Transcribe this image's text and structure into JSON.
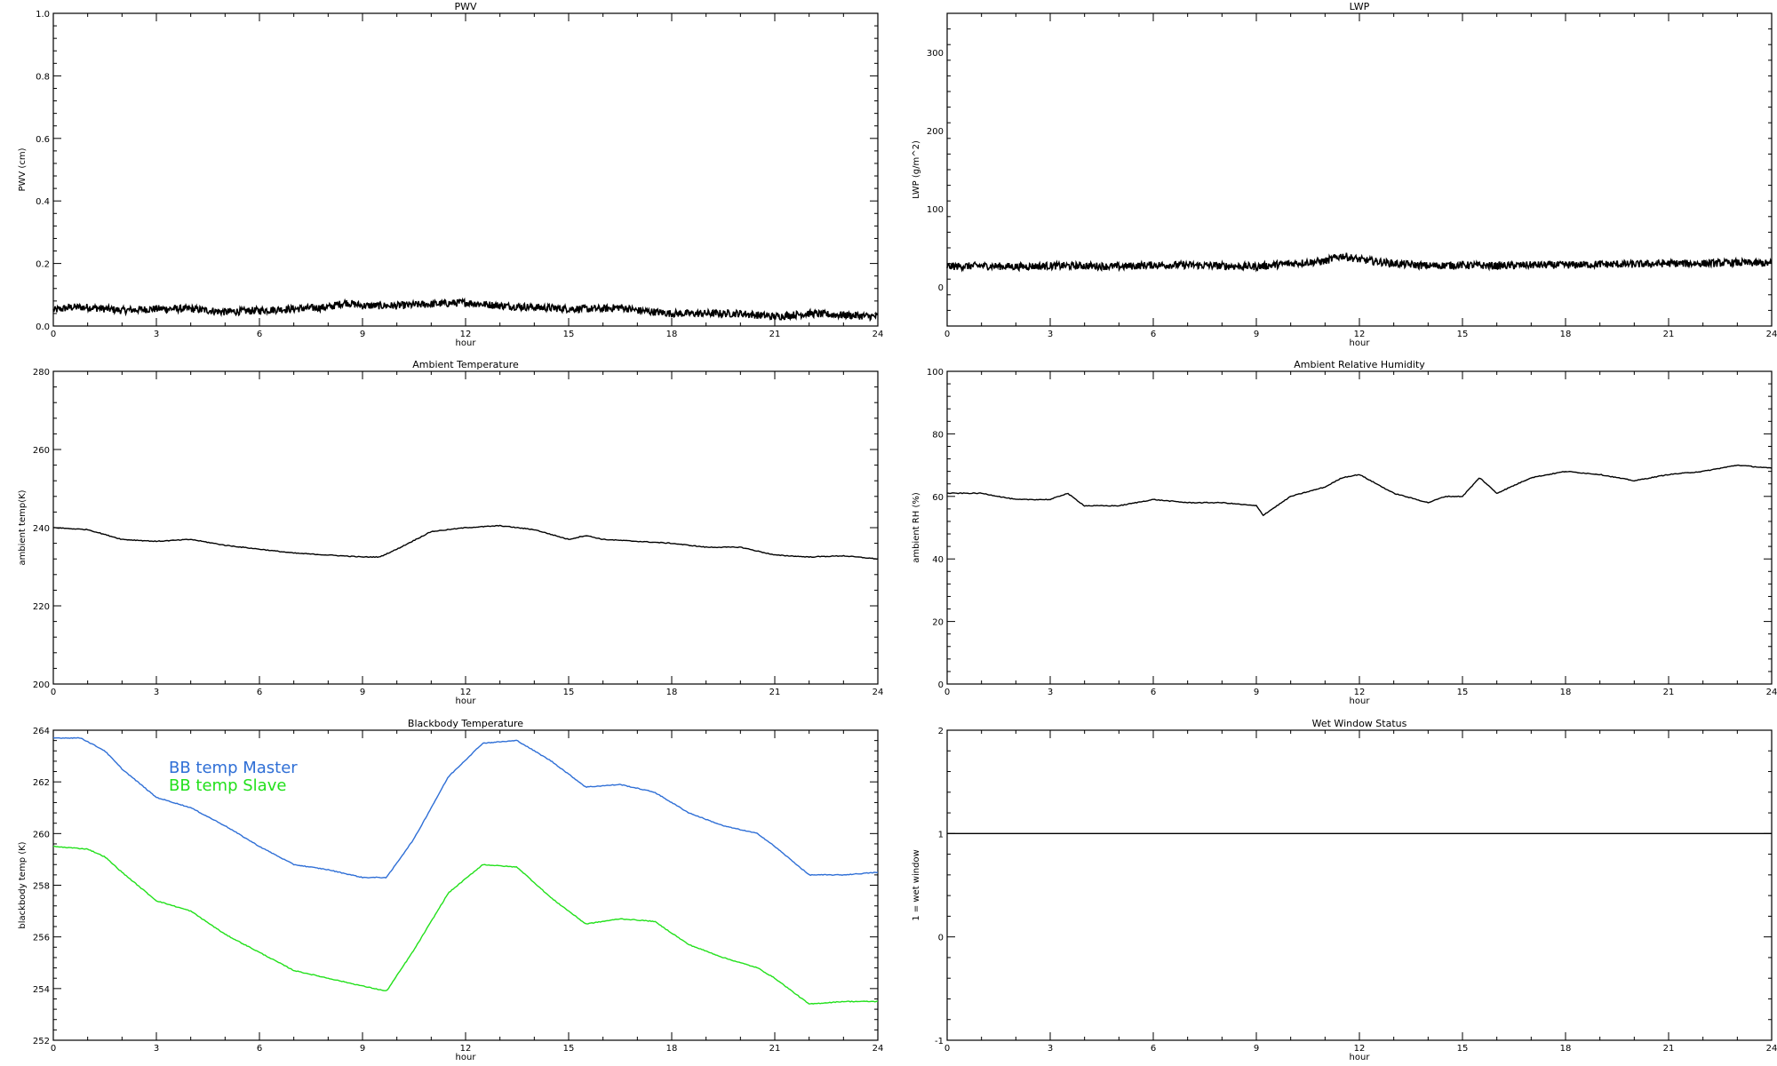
{
  "chart_data": [
    {
      "type": "line",
      "title": "PWV",
      "xlabel": "hour",
      "ylabel": "PWV (cm)",
      "xlim": [
        0,
        24
      ],
      "ylim": [
        0,
        1.0
      ],
      "xticks": [
        0,
        3,
        6,
        9,
        12,
        15,
        18,
        21,
        24
      ],
      "yticks": [
        0.0,
        0.2,
        0.4,
        0.6,
        0.8,
        1.0
      ],
      "ytick_labels": [
        "0.0",
        "0.2",
        "0.4",
        "0.6",
        "0.8",
        "1.0"
      ],
      "noisy": true,
      "series": [
        {
          "color": "#000000",
          "x": [
            0,
            0.5,
            1,
            2,
            3,
            4,
            5,
            6,
            7,
            8,
            8.5,
            9,
            10,
            11,
            12,
            13,
            14,
            15,
            16,
            16.5,
            17,
            18,
            19,
            20,
            21,
            22,
            23,
            24
          ],
          "y": [
            0.05,
            0.06,
            0.06,
            0.05,
            0.055,
            0.055,
            0.045,
            0.05,
            0.055,
            0.06,
            0.075,
            0.065,
            0.065,
            0.07,
            0.075,
            0.065,
            0.06,
            0.055,
            0.055,
            0.06,
            0.05,
            0.04,
            0.04,
            0.04,
            0.03,
            0.04,
            0.035,
            0.03
          ]
        }
      ]
    },
    {
      "type": "line",
      "title": "LWP",
      "xlabel": "hour",
      "ylabel": "LWP (g/m^2)",
      "xlim": [
        0,
        24
      ],
      "ylim": [
        -50,
        350
      ],
      "xticks": [
        0,
        3,
        6,
        9,
        12,
        15,
        18,
        21,
        24
      ],
      "yticks": [
        0,
        100,
        200,
        300
      ],
      "ytick_labels": [
        "0",
        "100",
        "200",
        "300"
      ],
      "noisy": true,
      "series": [
        {
          "color": "#000000",
          "x": [
            0,
            1,
            2,
            3,
            4,
            5,
            6,
            7,
            8,
            9,
            10,
            11,
            11.5,
            12,
            13,
            14,
            15,
            16,
            17,
            18,
            19,
            20,
            21,
            22,
            23,
            24
          ],
          "y": [
            26,
            27,
            26,
            27,
            27,
            26,
            28,
            28,
            27,
            26,
            30,
            33,
            40,
            35,
            30,
            27,
            28,
            27,
            28,
            28,
            29,
            29,
            30,
            30,
            31,
            30
          ]
        }
      ]
    },
    {
      "type": "line",
      "title": "Ambient Temperature",
      "xlabel": "hour",
      "ylabel": "ambient temp(K)",
      "xlim": [
        0,
        24
      ],
      "ylim": [
        200,
        280
      ],
      "xticks": [
        0,
        3,
        6,
        9,
        12,
        15,
        18,
        21,
        24
      ],
      "yticks": [
        200,
        220,
        240,
        260,
        280
      ],
      "ytick_labels": [
        "200",
        "220",
        "240",
        "260",
        "280"
      ],
      "noisy": false,
      "series": [
        {
          "color": "#000000",
          "x": [
            0,
            1,
            2,
            3,
            4,
            5,
            6,
            7,
            8,
            9,
            9.5,
            10,
            11,
            12,
            13,
            14,
            15,
            15.5,
            16,
            17,
            18,
            19,
            20,
            21,
            22,
            23,
            24
          ],
          "y": [
            240,
            239.5,
            237,
            236.5,
            237,
            235.5,
            234.5,
            233.5,
            233,
            232.5,
            232.5,
            234.5,
            239,
            240,
            240.5,
            239.5,
            237,
            238,
            237,
            236.5,
            236,
            235,
            235,
            233,
            232.5,
            232.8,
            232
          ]
        }
      ]
    },
    {
      "type": "line",
      "title": "Ambient Relative Humidity",
      "xlabel": "hour",
      "ylabel": "ambient RH (%)",
      "xlim": [
        0,
        24
      ],
      "ylim": [
        0,
        100
      ],
      "xticks": [
        0,
        3,
        6,
        9,
        12,
        15,
        18,
        21,
        24
      ],
      "yticks": [
        0,
        20,
        40,
        60,
        80,
        100
      ],
      "ytick_labels": [
        "0",
        "20",
        "40",
        "60",
        "80",
        "100"
      ],
      "noisy": false,
      "series": [
        {
          "color": "#000000",
          "x": [
            0,
            1,
            2,
            3,
            3.5,
            4,
            5,
            6,
            7,
            8,
            9,
            9.2,
            10,
            11,
            11.5,
            12,
            13,
            14,
            14.5,
            15,
            15.5,
            16,
            17,
            18,
            19,
            20,
            21,
            22,
            23,
            24
          ],
          "y": [
            61,
            61,
            59,
            59,
            61,
            57,
            57,
            59,
            58,
            58,
            57,
            54,
            60,
            63,
            66,
            67,
            61,
            58,
            60,
            60,
            66,
            61,
            66,
            68,
            67,
            65,
            67,
            68,
            70,
            69
          ]
        }
      ]
    },
    {
      "type": "line",
      "title": "Blackbody Temperature",
      "xlabel": "hour",
      "ylabel": "blackbody temp (K)",
      "xlim": [
        0,
        24
      ],
      "ylim": [
        252,
        264
      ],
      "xticks": [
        0,
        3,
        6,
        9,
        12,
        15,
        18,
        21,
        24
      ],
      "yticks": [
        252,
        254,
        256,
        258,
        260,
        262,
        264
      ],
      "ytick_labels": [
        "252",
        "254",
        "256",
        "258",
        "260",
        "262",
        "264"
      ],
      "noisy": false,
      "legend": "top-left",
      "series": [
        {
          "name": "BB temp Master",
          "color": "#2f6fd6",
          "x": [
            0,
            0.8,
            1.5,
            2,
            3,
            4,
            5,
            6,
            7,
            8,
            9,
            9.7,
            10.5,
            11.5,
            12.5,
            13.5,
            14.5,
            15.5,
            16.5,
            17.5,
            18.5,
            19.5,
            20.5,
            21,
            22,
            23,
            24
          ],
          "y": [
            263.7,
            263.7,
            263.2,
            262.5,
            261.4,
            261,
            260.3,
            259.5,
            258.8,
            258.6,
            258.3,
            258.3,
            259.8,
            262.2,
            263.5,
            263.6,
            262.8,
            261.8,
            261.9,
            261.6,
            260.8,
            260.3,
            260,
            259.5,
            258.4,
            258.4,
            258.5
          ]
        },
        {
          "name": "BB temp Slave",
          "color": "#22e01b",
          "x": [
            0,
            1,
            1.5,
            2,
            3,
            4,
            5,
            6,
            7,
            8,
            9,
            9.7,
            10.5,
            11.5,
            12.5,
            13.5,
            14.5,
            15.5,
            16.5,
            17.5,
            18.5,
            19.5,
            20.5,
            21,
            22,
            23,
            24
          ],
          "y": [
            259.5,
            259.4,
            259.1,
            258.5,
            257.4,
            257,
            256.1,
            255.4,
            254.7,
            254.4,
            254.1,
            253.9,
            255.5,
            257.7,
            258.8,
            258.7,
            257.5,
            256.5,
            256.7,
            256.6,
            255.7,
            255.2,
            254.8,
            254.4,
            253.4,
            253.5,
            253.5
          ]
        }
      ]
    },
    {
      "type": "line",
      "title": "Wet Window Status",
      "xlabel": "hour",
      "ylabel": "1 = wet window",
      "xlim": [
        0,
        24
      ],
      "ylim": [
        -1,
        2
      ],
      "xticks": [
        0,
        3,
        6,
        9,
        12,
        15,
        18,
        21,
        24
      ],
      "yticks": [
        -1,
        0,
        1,
        2
      ],
      "ytick_labels": [
        "-1",
        "0",
        "1",
        "2"
      ],
      "noisy": false,
      "series": [
        {
          "color": "#000000",
          "x": [
            0,
            24
          ],
          "y": [
            1,
            1
          ]
        }
      ]
    }
  ]
}
